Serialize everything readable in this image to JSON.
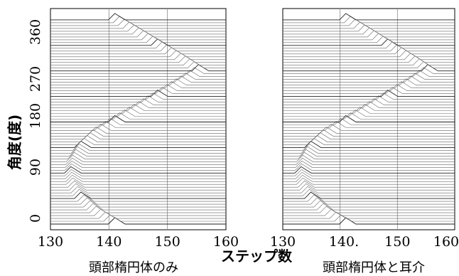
{
  "chart_data": [
    {
      "type": "line",
      "title": "",
      "caption": "頭部楕円体のみ",
      "xlabel": "ステップ数",
      "ylabel": "角度(度)",
      "xlim": [
        130,
        160
      ],
      "ylim": [
        -10,
        380
      ],
      "xticks": [
        "130",
        "140",
        "150",
        "160"
      ],
      "yticks": [
        "0",
        "90",
        "180",
        "270",
        "360"
      ],
      "grid": true,
      "trace_angle_step_deg": 5,
      "peak_ridge": {
        "angle": [
          0,
          20,
          45,
          70,
          90,
          110,
          135,
          160,
          180,
          200,
          225,
          250,
          270,
          290,
          315,
          340,
          360
        ],
        "x": [
          141.0,
          137.8,
          135.2,
          133.8,
          133.5,
          133.8,
          135.2,
          137.8,
          141.0,
          144.3,
          148.3,
          152.3,
          155.3,
          152.3,
          148.3,
          144.3,
          141.0
        ]
      }
    },
    {
      "type": "line",
      "title": "",
      "caption": "頭部楕円体と耳介",
      "xlabel": "ステップ数",
      "ylabel": "角度(度)",
      "xlim": [
        130,
        160
      ],
      "ylim": [
        -10,
        380
      ],
      "xticks": [
        "130",
        "140.",
        "150",
        "160"
      ],
      "yticks": [
        "0",
        "90",
        "180",
        "270",
        "360"
      ],
      "grid": true,
      "trace_angle_step_deg": 5,
      "peak_ridge": {
        "angle": [
          0,
          20,
          45,
          70,
          90,
          110,
          135,
          160,
          180,
          200,
          225,
          250,
          270,
          290,
          315,
          340,
          360
        ],
        "x": [
          141.0,
          137.6,
          134.9,
          133.5,
          133.2,
          133.5,
          134.9,
          137.6,
          141.0,
          144.3,
          148.3,
          152.3,
          155.3,
          152.3,
          148.3,
          144.3,
          141.0
        ]
      }
    }
  ],
  "shared_xlabel": "ステップ数"
}
